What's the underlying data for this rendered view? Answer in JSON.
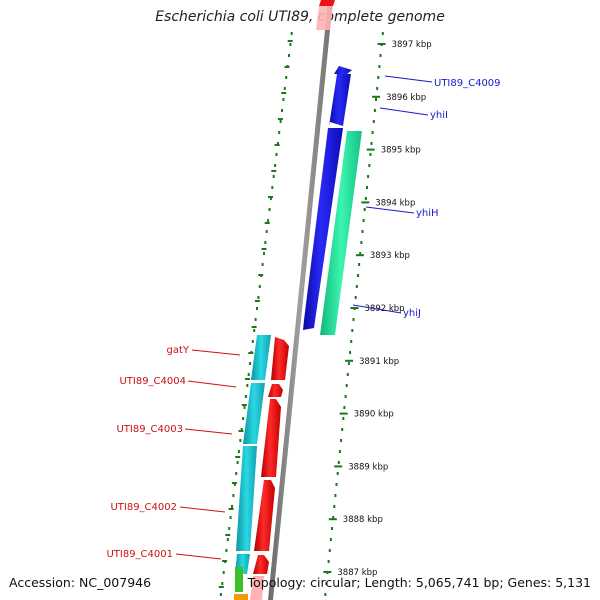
{
  "title": "Escherichia coli UTI89, complete genome",
  "footer": {
    "accession": "Accession: NC_007946",
    "summary": "Topology: circular; Length: 5,065,741 bp; Genes: 5,131"
  },
  "scale_ticks": [
    {
      "label": "3897 kbp",
      "kbp": 3897
    },
    {
      "label": "3896 kbp",
      "kbp": 3896
    },
    {
      "label": "3895 kbp",
      "kbp": 3895
    },
    {
      "label": "3894 kbp",
      "kbp": 3894
    },
    {
      "label": "3893 kbp",
      "kbp": 3893
    },
    {
      "label": "3892 kbp",
      "kbp": 3892
    },
    {
      "label": "3891 kbp",
      "kbp": 3891
    },
    {
      "label": "3890 kbp",
      "kbp": 3890
    },
    {
      "label": "3889 kbp",
      "kbp": 3889
    },
    {
      "label": "3888 kbp",
      "kbp": 3888
    },
    {
      "label": "3887 kbp",
      "kbp": 3887
    }
  ],
  "gene_labels": {
    "forward": [
      "UTI89_C4009",
      "yhiI",
      "yhiH",
      "yhiJ"
    ],
    "reverse": [
      "gatY",
      "UTI89_C4004",
      "UTI89_C4003",
      "UTI89_C4002",
      "UTI89_C4001"
    ]
  },
  "colors": {
    "forward_label": "#1a1acc",
    "reverse_label": "#cc1111",
    "forward_gene": "#1414e6",
    "reverse_gene": "#ee1111",
    "cds_forward": "#22e8a0",
    "cds_reverse": "#19c0cc",
    "backbone": "#8a8a8a",
    "tick": "#1a7a1a"
  }
}
